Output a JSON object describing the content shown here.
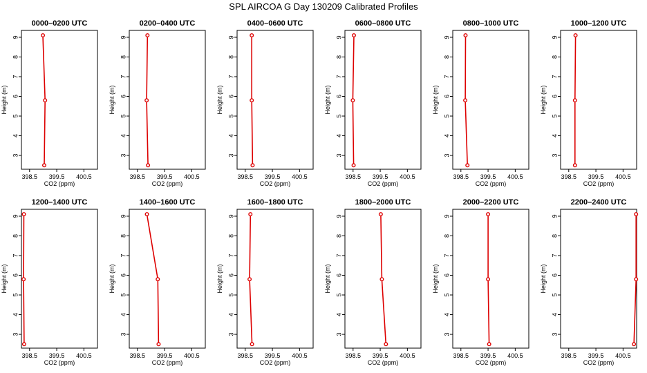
{
  "title": "SPL AIRCOA G  Day 130209  Calibrated Profiles",
  "colors": {
    "series": "#dd0000",
    "axis": "#000000"
  },
  "chart_data": [
    {
      "type": "line",
      "title": "0000–0200 UTC",
      "xlabel": "CO2 (ppm)",
      "ylabel": "Height (m)",
      "x_ticks": [
        "398.5",
        "399.5",
        "400.5"
      ],
      "x_tick_values": [
        398.5,
        399.5,
        400.5
      ],
      "y_ticks": [
        "3",
        "4",
        "5",
        "6",
        "7",
        "8",
        "9"
      ],
      "y_tick_values": [
        3,
        4,
        5,
        6,
        7,
        8,
        9
      ],
      "xlim": [
        398.2,
        401.0
      ],
      "ylim": [
        2.3,
        9.35
      ],
      "points": [
        {
          "x": 399.04,
          "y": 2.5
        },
        {
          "x": 399.07,
          "y": 5.8
        },
        {
          "x": 398.99,
          "y": 9.1
        }
      ],
      "marker": "circle"
    },
    {
      "type": "line",
      "title": "0200–0400 UTC",
      "xlabel": "CO2 (ppm)",
      "ylabel": "Height (m)",
      "x_ticks": [
        "398.5",
        "399.5",
        "400.5"
      ],
      "x_tick_values": [
        398.5,
        399.5,
        400.5
      ],
      "y_ticks": [
        "3",
        "4",
        "5",
        "6",
        "7",
        "8",
        "9"
      ],
      "y_tick_values": [
        3,
        4,
        5,
        6,
        7,
        8,
        9
      ],
      "xlim": [
        398.2,
        401.0
      ],
      "ylim": [
        2.3,
        9.35
      ],
      "points": [
        {
          "x": 398.89,
          "y": 2.5
        },
        {
          "x": 398.84,
          "y": 5.8
        },
        {
          "x": 398.87,
          "y": 9.1
        }
      ],
      "marker": "circle"
    },
    {
      "type": "line",
      "title": "0400–0600 UTC",
      "xlabel": "CO2 (ppm)",
      "ylabel": "Height (m)",
      "x_ticks": [
        "398.5",
        "399.5",
        "400.5"
      ],
      "x_tick_values": [
        398.5,
        399.5,
        400.5
      ],
      "y_ticks": [
        "3",
        "4",
        "5",
        "6",
        "7",
        "8",
        "9"
      ],
      "y_tick_values": [
        3,
        4,
        5,
        6,
        7,
        8,
        9
      ],
      "xlim": [
        398.2,
        401.0
      ],
      "ylim": [
        2.3,
        9.35
      ],
      "points": [
        {
          "x": 398.77,
          "y": 2.5
        },
        {
          "x": 398.74,
          "y": 5.8
        },
        {
          "x": 398.74,
          "y": 9.1
        }
      ],
      "marker": "circle"
    },
    {
      "type": "line",
      "title": "0600–0800 UTC",
      "xlabel": "CO2 (ppm)",
      "ylabel": "Height (m)",
      "x_ticks": [
        "398.5",
        "399.5",
        "400.5"
      ],
      "x_tick_values": [
        398.5,
        399.5,
        400.5
      ],
      "y_ticks": [
        "3",
        "4",
        "5",
        "6",
        "7",
        "8",
        "9"
      ],
      "y_tick_values": [
        3,
        4,
        5,
        6,
        7,
        8,
        9
      ],
      "xlim": [
        398.2,
        401.0
      ],
      "ylim": [
        2.3,
        9.35
      ],
      "points": [
        {
          "x": 398.52,
          "y": 2.5
        },
        {
          "x": 398.49,
          "y": 5.8
        },
        {
          "x": 398.53,
          "y": 9.1
        }
      ],
      "marker": "circle"
    },
    {
      "type": "line",
      "title": "0800–1000 UTC",
      "xlabel": "CO2 (ppm)",
      "ylabel": "Height (m)",
      "x_ticks": [
        "398.5",
        "399.5",
        "400.5"
      ],
      "x_tick_values": [
        398.5,
        399.5,
        400.5
      ],
      "y_ticks": [
        "3",
        "4",
        "5",
        "6",
        "7",
        "8",
        "9"
      ],
      "y_tick_values": [
        3,
        4,
        5,
        6,
        7,
        8,
        9
      ],
      "xlim": [
        398.2,
        401.0
      ],
      "ylim": [
        2.3,
        9.35
      ],
      "points": [
        {
          "x": 398.74,
          "y": 2.5
        },
        {
          "x": 398.66,
          "y": 5.8
        },
        {
          "x": 398.67,
          "y": 9.1
        }
      ],
      "marker": "circle"
    },
    {
      "type": "line",
      "title": "1000–1200 UTC",
      "xlabel": "CO2 (ppm)",
      "ylabel": "Height (m)",
      "x_ticks": [
        "398.5",
        "399.5",
        "400.5"
      ],
      "x_tick_values": [
        398.5,
        399.5,
        400.5
      ],
      "y_ticks": [
        "3",
        "4",
        "5",
        "6",
        "7",
        "8",
        "9"
      ],
      "y_tick_values": [
        3,
        4,
        5,
        6,
        7,
        8,
        9
      ],
      "xlim": [
        398.2,
        401.0
      ],
      "ylim": [
        2.3,
        9.35
      ],
      "points": [
        {
          "x": 398.73,
          "y": 2.5
        },
        {
          "x": 398.73,
          "y": 5.8
        },
        {
          "x": 398.75,
          "y": 9.1
        }
      ],
      "marker": "circle"
    },
    {
      "type": "line",
      "title": "1200–1400 UTC",
      "xlabel": "CO2 (ppm)",
      "ylabel": "Height (m)",
      "x_ticks": [
        "398.5",
        "399.5",
        "400.5"
      ],
      "x_tick_values": [
        398.5,
        399.5,
        400.5
      ],
      "y_ticks": [
        "3",
        "4",
        "5",
        "6",
        "7",
        "8",
        "9"
      ],
      "y_tick_values": [
        3,
        4,
        5,
        6,
        7,
        8,
        9
      ],
      "xlim": [
        398.2,
        401.0
      ],
      "ylim": [
        2.3,
        9.35
      ],
      "points": [
        {
          "x": 398.3,
          "y": 2.5
        },
        {
          "x": 398.28,
          "y": 5.8
        },
        {
          "x": 398.29,
          "y": 9.1
        }
      ],
      "marker": "circle"
    },
    {
      "type": "line",
      "title": "1400–1600 UTC",
      "xlabel": "CO2 (ppm)",
      "ylabel": "Height (m)",
      "x_ticks": [
        "398.5",
        "399.5",
        "400.5"
      ],
      "x_tick_values": [
        398.5,
        399.5,
        400.5
      ],
      "y_ticks": [
        "3",
        "4",
        "5",
        "6",
        "7",
        "8",
        "9"
      ],
      "y_tick_values": [
        3,
        4,
        5,
        6,
        7,
        8,
        9
      ],
      "xlim": [
        398.2,
        401.0
      ],
      "ylim": [
        2.3,
        9.35
      ],
      "points": [
        {
          "x": 399.28,
          "y": 2.5
        },
        {
          "x": 399.25,
          "y": 5.8
        },
        {
          "x": 398.85,
          "y": 9.1
        }
      ],
      "marker": "circle"
    },
    {
      "type": "line",
      "title": "1600–1800 UTC",
      "xlabel": "CO2 (ppm)",
      "ylabel": "Height (m)",
      "x_ticks": [
        "398.5",
        "399.5",
        "400.5"
      ],
      "x_tick_values": [
        398.5,
        399.5,
        400.5
      ],
      "y_ticks": [
        "3",
        "4",
        "5",
        "6",
        "7",
        "8",
        "9"
      ],
      "y_tick_values": [
        3,
        4,
        5,
        6,
        7,
        8,
        9
      ],
      "xlim": [
        398.2,
        401.0
      ],
      "ylim": [
        2.3,
        9.35
      ],
      "points": [
        {
          "x": 398.75,
          "y": 2.5
        },
        {
          "x": 398.66,
          "y": 5.8
        },
        {
          "x": 398.69,
          "y": 9.1
        }
      ],
      "marker": "circle"
    },
    {
      "type": "line",
      "title": "1800–2000 UTC",
      "xlabel": "CO2 (ppm)",
      "ylabel": "Height (m)",
      "x_ticks": [
        "398.5",
        "399.5",
        "400.5"
      ],
      "x_tick_values": [
        398.5,
        399.5,
        400.5
      ],
      "y_ticks": [
        "3",
        "4",
        "5",
        "6",
        "7",
        "8",
        "9"
      ],
      "y_tick_values": [
        3,
        4,
        5,
        6,
        7,
        8,
        9
      ],
      "xlim": [
        398.2,
        401.0
      ],
      "ylim": [
        2.3,
        9.35
      ],
      "points": [
        {
          "x": 399.71,
          "y": 2.5
        },
        {
          "x": 399.56,
          "y": 5.8
        },
        {
          "x": 399.52,
          "y": 9.1
        }
      ],
      "marker": "circle"
    },
    {
      "type": "line",
      "title": "2000–2200 UTC",
      "xlabel": "CO2 (ppm)",
      "ylabel": "Height (m)",
      "x_ticks": [
        "398.5",
        "399.5",
        "400.5"
      ],
      "x_tick_values": [
        398.5,
        399.5,
        400.5
      ],
      "y_ticks": [
        "3",
        "4",
        "5",
        "6",
        "7",
        "8",
        "9"
      ],
      "y_tick_values": [
        3,
        4,
        5,
        6,
        7,
        8,
        9
      ],
      "xlim": [
        398.2,
        401.0
      ],
      "ylim": [
        2.3,
        9.35
      ],
      "points": [
        {
          "x": 399.54,
          "y": 2.5
        },
        {
          "x": 399.5,
          "y": 5.8
        },
        {
          "x": 399.5,
          "y": 9.1
        }
      ],
      "marker": "circle"
    },
    {
      "type": "line",
      "title": "2200–2400 UTC",
      "xlabel": "CO2 (ppm)",
      "ylabel": "Height (m)",
      "x_ticks": [
        "398.5",
        "399.5",
        "400.5"
      ],
      "x_tick_values": [
        398.5,
        399.5,
        400.5
      ],
      "y_ticks": [
        "3",
        "4",
        "5",
        "6",
        "7",
        "8",
        "9"
      ],
      "y_tick_values": [
        3,
        4,
        5,
        6,
        7,
        8,
        9
      ],
      "xlim": [
        398.2,
        401.0
      ],
      "ylim": [
        2.3,
        9.35
      ],
      "points": [
        {
          "x": 400.9,
          "y": 2.5
        },
        {
          "x": 400.98,
          "y": 5.8
        },
        {
          "x": 400.98,
          "y": 9.1
        }
      ],
      "marker": "circle"
    }
  ]
}
